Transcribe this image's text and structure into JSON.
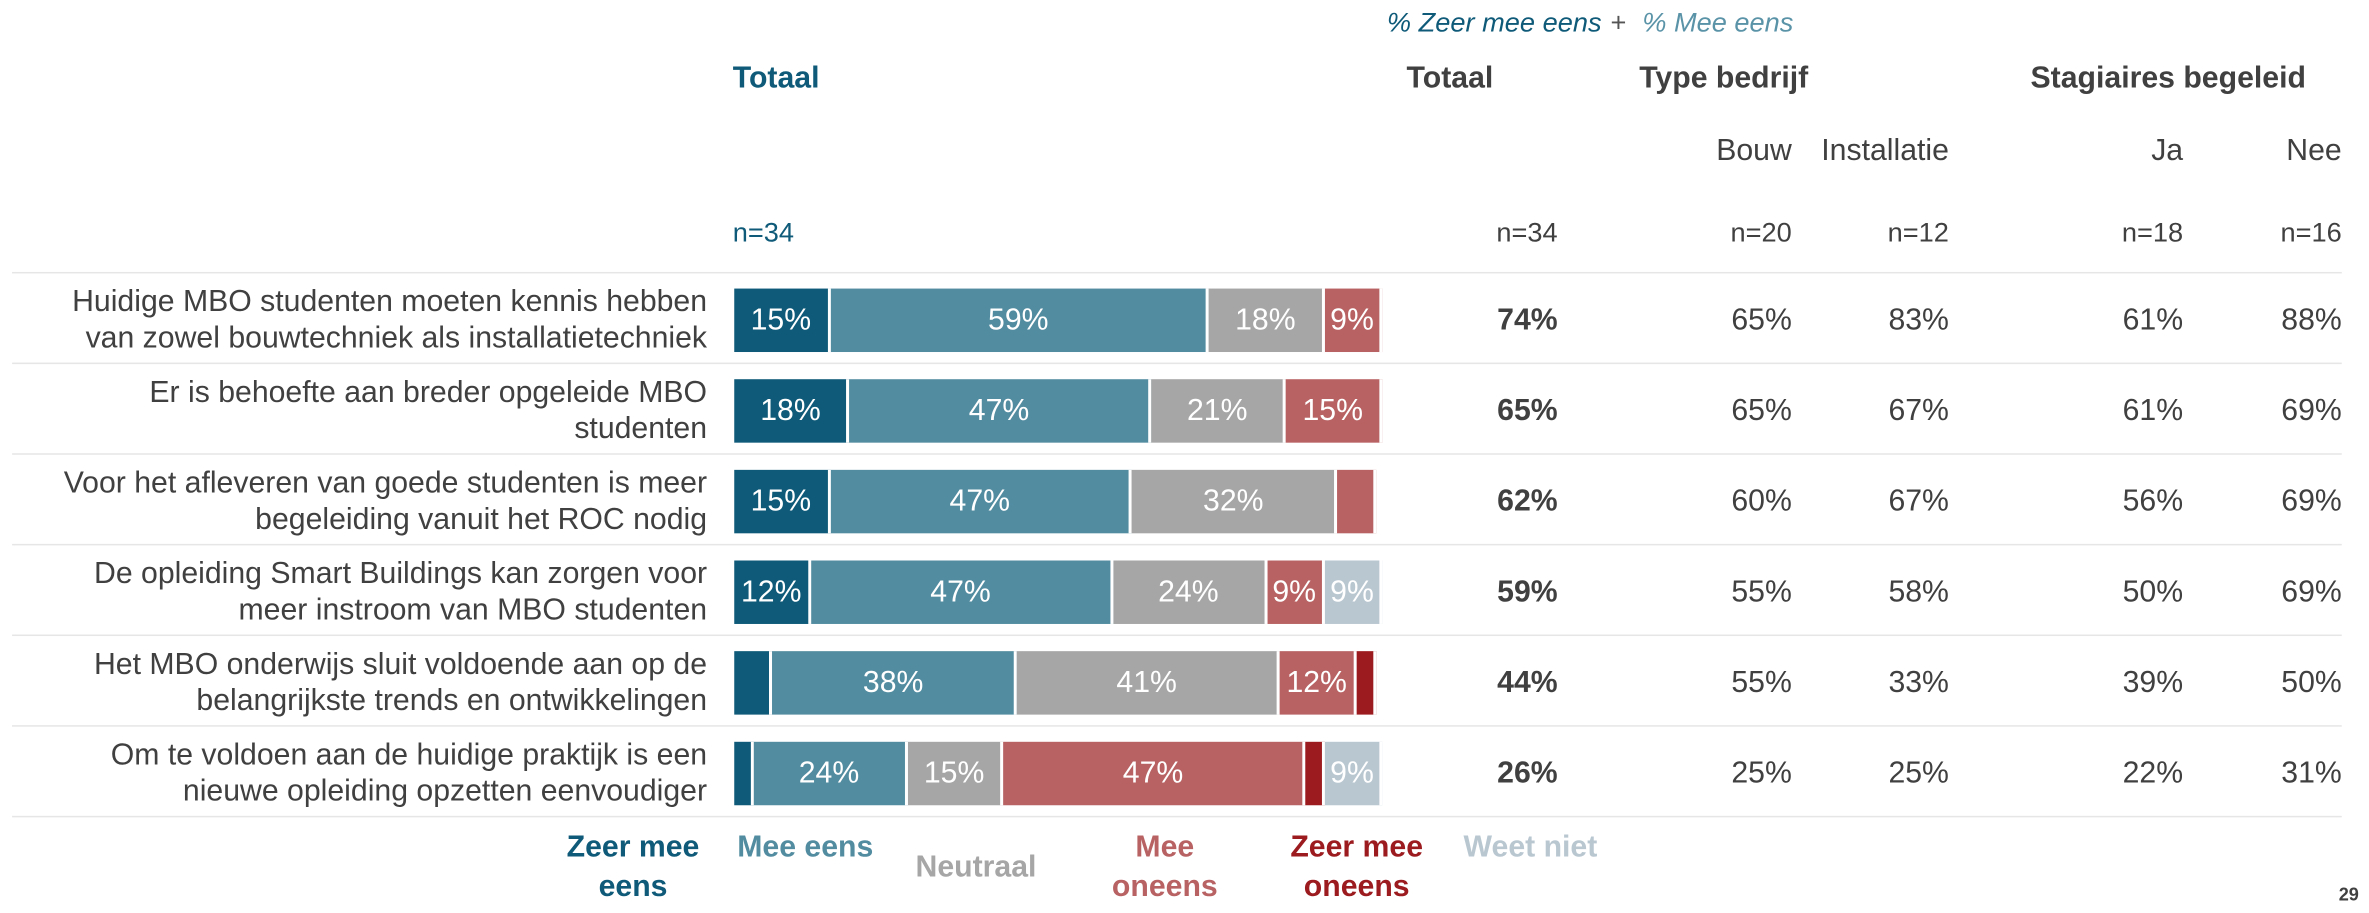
{
  "chart_data": {
    "type": "bar",
    "orientation": "horizontal",
    "stacked": true,
    "note": [
      "% Zeer mee eens",
      "+",
      "% Mee eens"
    ],
    "title": "Totaal",
    "n_label": "n=34",
    "categories": [
      [
        "Huidige MBO studenten moeten kennis hebben",
        "van zowel bouwtechniek als installatietechniek"
      ],
      [
        "Er is behoefte aan breder opgeleide MBO",
        "studenten"
      ],
      [
        "Voor het afleveren van goede studenten is meer",
        "begeleiding vanuit het ROC nodig"
      ],
      [
        "De opleiding Smart Buildings kan zorgen voor",
        "meer instroom van MBO studenten"
      ],
      [
        "Het MBO onderwijs sluit voldoende aan op de",
        "belangrijkste trends en ontwikkelingen"
      ],
      [
        "Om te voldoen aan de huidige praktijk is een",
        "nieuwe opleiding opzetten eenvoudiger"
      ]
    ],
    "xlim": [
      0,
      101
    ],
    "series": [
      {
        "name": "Zeer mee eens",
        "color": "#0e5a78",
        "values": [
          15,
          18,
          15,
          12,
          6,
          3
        ],
        "value_labels": [
          "15%",
          "18%",
          "15%",
          "12%",
          null,
          null
        ]
      },
      {
        "name": "Mee eens",
        "color": "#528ca0",
        "values": [
          59,
          47,
          47,
          47,
          38,
          24
        ],
        "value_labels": [
          "59%",
          "47%",
          "47%",
          "47%",
          "38%",
          "24%"
        ]
      },
      {
        "name": "Neutraal",
        "color": "#a6a6a6",
        "values": [
          18,
          21,
          32,
          24,
          41,
          15
        ],
        "value_labels": [
          "18%",
          "21%",
          "32%",
          "24%",
          "41%",
          "15%"
        ]
      },
      {
        "name": "Mee oneens",
        "color": "#b86263",
        "values": [
          9,
          15,
          6,
          9,
          12,
          47
        ],
        "value_labels": [
          "9%",
          "15%",
          null,
          "9%",
          "12%",
          "47%"
        ]
      },
      {
        "name": "Zeer mee oneens",
        "color": "#9b1b1f",
        "values": [
          0,
          0,
          0,
          0,
          3,
          3
        ],
        "value_labels": [
          null,
          null,
          null,
          null,
          null,
          null
        ]
      },
      {
        "name": "Weet niet",
        "color": "#b9c7d1",
        "values": [
          0,
          0,
          0,
          9,
          0,
          9
        ],
        "value_labels": [
          null,
          null,
          null,
          "9%",
          null,
          "9%"
        ]
      }
    ]
  },
  "table": {
    "groups": [
      "Totaal",
      "Type bedrijf",
      "Stagiaires begeleid"
    ],
    "columns": [
      "Bouw",
      "Installatie",
      "Ja",
      "Nee"
    ],
    "n": [
      "n=34",
      "n=20",
      "n=12",
      "n=18",
      "n=16"
    ],
    "rows": [
      [
        "74%",
        "65%",
        "83%",
        "61%",
        "88%"
      ],
      [
        "65%",
        "65%",
        "67%",
        "61%",
        "69%"
      ],
      [
        "62%",
        "60%",
        "67%",
        "56%",
        "69%"
      ],
      [
        "59%",
        "55%",
        "58%",
        "50%",
        "69%"
      ],
      [
        "44%",
        "55%",
        "33%",
        "39%",
        "50%"
      ],
      [
        "26%",
        "25%",
        "25%",
        "22%",
        "31%"
      ]
    ]
  },
  "page_number": "29"
}
